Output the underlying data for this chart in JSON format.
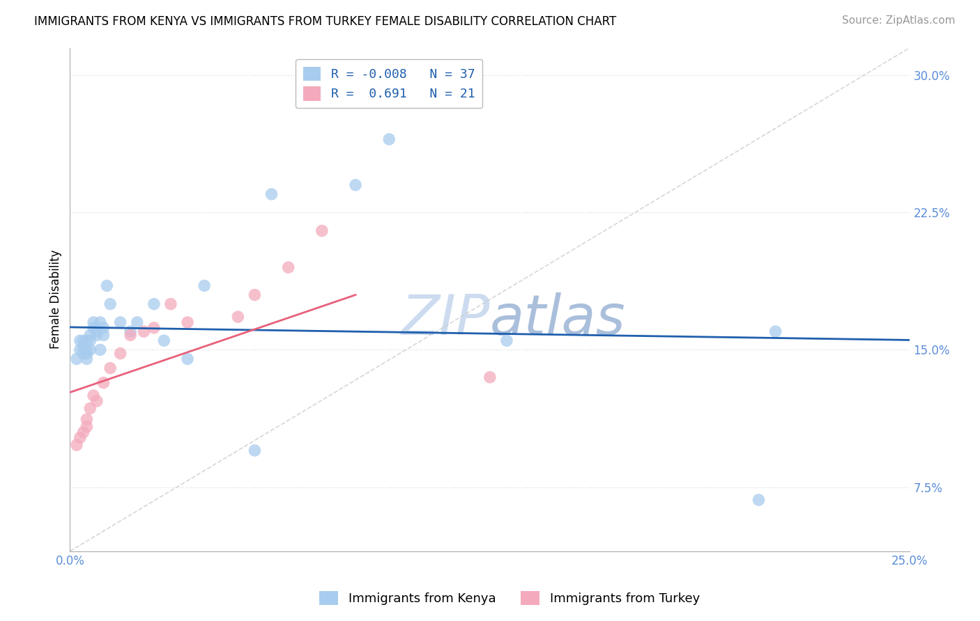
{
  "title": "IMMIGRANTS FROM KENYA VS IMMIGRANTS FROM TURKEY FEMALE DISABILITY CORRELATION CHART",
  "source": "Source: ZipAtlas.com",
  "ylabel": "Female Disability",
  "xlim": [
    0.0,
    0.25
  ],
  "ylim": [
    0.04,
    0.315
  ],
  "yticks": [
    0.075,
    0.15,
    0.225,
    0.3
  ],
  "yticklabels": [
    "7.5%",
    "15.0%",
    "22.5%",
    "30.0%"
  ],
  "xticks": [
    0.0,
    0.05,
    0.1,
    0.15,
    0.2,
    0.25
  ],
  "xticklabels": [
    "0.0%",
    "",
    "",
    "",
    "",
    "25.0%"
  ],
  "kenya_color": "#A8CCEE",
  "turkey_color": "#F4AABC",
  "kenya_line_color": "#1F5FAD",
  "turkey_line_color": "#E8607A",
  "diagonal_color": "#CCCCCC",
  "R_kenya": -0.008,
  "N_kenya": 37,
  "R_turkey": 0.691,
  "N_turkey": 21,
  "kenya_x": [
    0.002,
    0.003,
    0.003,
    0.004,
    0.004,
    0.004,
    0.005,
    0.005,
    0.005,
    0.005,
    0.006,
    0.006,
    0.006,
    0.007,
    0.007,
    0.008,
    0.008,
    0.009,
    0.009,
    0.01,
    0.01,
    0.011,
    0.012,
    0.015,
    0.018,
    0.02,
    0.025,
    0.028,
    0.035,
    0.04,
    0.055,
    0.06,
    0.085,
    0.095,
    0.13,
    0.205,
    0.21
  ],
  "kenya_y": [
    0.145,
    0.15,
    0.155,
    0.148,
    0.152,
    0.155,
    0.15,
    0.155,
    0.148,
    0.145,
    0.155,
    0.15,
    0.158,
    0.165,
    0.162,
    0.158,
    0.16,
    0.15,
    0.165,
    0.158,
    0.162,
    0.185,
    0.175,
    0.165,
    0.16,
    0.165,
    0.175,
    0.155,
    0.145,
    0.185,
    0.095,
    0.235,
    0.24,
    0.265,
    0.155,
    0.068,
    0.16
  ],
  "turkey_x": [
    0.002,
    0.003,
    0.004,
    0.005,
    0.005,
    0.006,
    0.007,
    0.008,
    0.01,
    0.012,
    0.015,
    0.018,
    0.022,
    0.025,
    0.03,
    0.035,
    0.05,
    0.055,
    0.065,
    0.075,
    0.125
  ],
  "turkey_y": [
    0.098,
    0.102,
    0.105,
    0.108,
    0.112,
    0.118,
    0.125,
    0.122,
    0.132,
    0.14,
    0.148,
    0.158,
    0.16,
    0.162,
    0.175,
    0.165,
    0.168,
    0.18,
    0.195,
    0.215,
    0.135
  ],
  "watermark_zip": "ZIP",
  "watermark_atlas": "atlas",
  "background_color": "#FFFFFF",
  "grid_color": "#DDDDDD",
  "tick_color": "#5B8DD9",
  "title_fontsize": 12,
  "source_fontsize": 11,
  "axis_fontsize": 12
}
